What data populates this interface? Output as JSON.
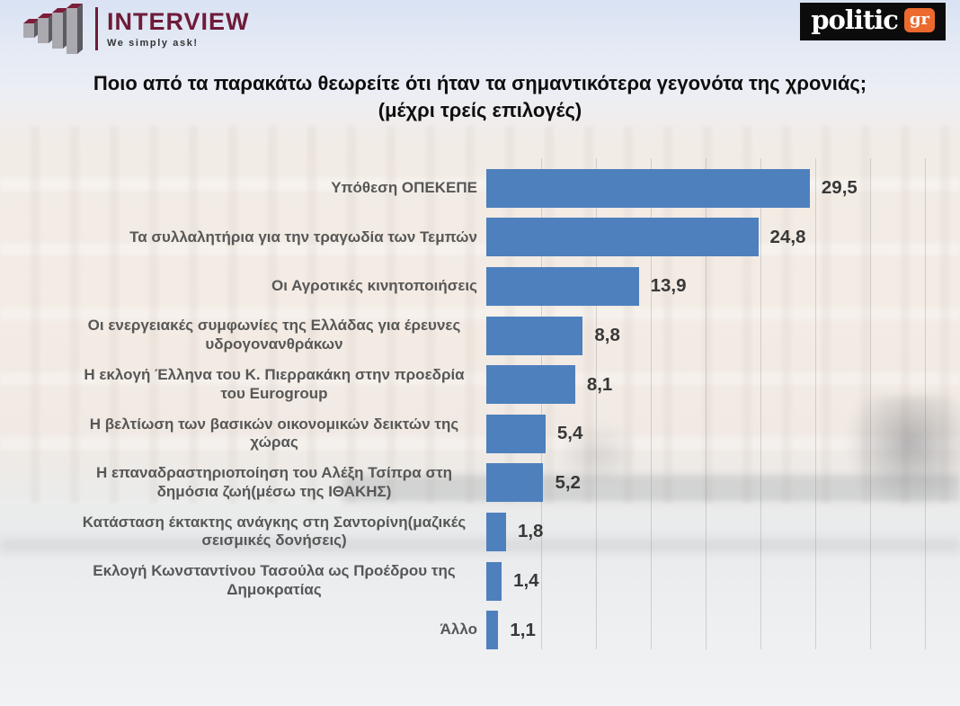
{
  "header": {
    "interview": {
      "name": "INTERVIEW",
      "tagline": "We simply ask!",
      "brand_color": "#6e1b38"
    },
    "politic": {
      "name": "politic",
      "suffix": "gr",
      "accent_color": "#ec6a2e",
      "bg_color": "#0c0c0c"
    }
  },
  "title": {
    "line1": "Ποιο από τα παρακάτω θεωρείτε ότι ήταν τα σημαντικότερα γεγονότα της χρονιάς;",
    "line2": "(μέχρι τρείς επιλογές)"
  },
  "chart_data": {
    "type": "bar",
    "orientation": "horizontal",
    "categories": [
      "Υπόθεση ΟΠΕΚΕΠΕ",
      "Τα συλλαλητήρια για την τραγωδία των Τεμπών",
      "Οι Αγροτικές κινητοποιήσεις",
      "Οι ενεργειακές συμφωνίες της Ελλάδας για έρευνες υδρογονανθράκων",
      "Η εκλογή Έλληνα του Κ. Πιερρακάκη στην προεδρία του Eurogroup",
      "Η βελτίωση των βασικών οικονομικών δεικτών της χώρας",
      "Η επαναδραστηριοποίηση του Αλέξη Τσίπρα στη δημόσια ζωή(μέσω της ΙΘΑΚΗΣ)",
      "Κατάσταση έκτακτης ανάγκης στη Σαντορίνη(μαζικές σεισμικές δονήσεις)",
      "Εκλογή Κωνσταντίνου Τασούλα ως Προέδρου της Δημοκρατίας",
      "Άλλο"
    ],
    "values": [
      29.5,
      24.8,
      13.9,
      8.8,
      8.1,
      5.4,
      5.2,
      1.8,
      1.4,
      1.1
    ],
    "value_labels": [
      "29,5",
      "24,8",
      "13,9",
      "8,8",
      "8,1",
      "5,4",
      "5,2",
      "1,8",
      "1,4",
      "1,1"
    ],
    "xlim": [
      0,
      40
    ],
    "gridline_step": 5,
    "grid": true,
    "legend": false,
    "bar_color": "#4e80bd",
    "label_color": "#575757",
    "value_color": "#383838"
  }
}
